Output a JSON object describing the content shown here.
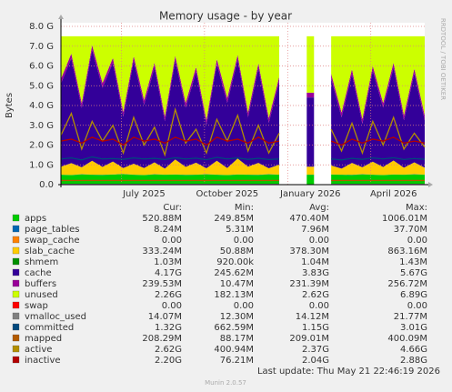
{
  "chart_data": {
    "type": "area",
    "title": "Memory usage - by year",
    "ylabel": "Bytes",
    "side_text": "RRDTOOL / TOBI OETIKER",
    "categories": [
      null,
      null,
      null,
      null,
      null,
      null,
      null,
      null,
      "July 2025",
      null,
      null,
      null,
      null,
      null,
      null,
      null,
      "October 2025",
      null,
      null,
      null,
      null,
      null,
      null,
      null,
      "January 2026",
      null,
      null,
      null,
      null,
      null,
      null,
      null,
      "April 2026",
      null,
      null,
      null
    ],
    "ylim": [
      0,
      8.0
    ],
    "yticks": [
      {
        "value": 0,
        "label": "0.0"
      },
      {
        "value": 1,
        "label": "1.0 G"
      },
      {
        "value": 2,
        "label": "2.0 G"
      },
      {
        "value": 3,
        "label": "3.0 G"
      },
      {
        "value": 4,
        "label": "4.0 G"
      },
      {
        "value": 5,
        "label": "5.0 G"
      },
      {
        "value": 6,
        "label": "6.0 G"
      },
      {
        "value": 7,
        "label": "7.0 G"
      },
      {
        "value": 8,
        "label": "8.0 G"
      }
    ],
    "grid": true,
    "stats_labels": [
      "Cur:",
      "Min:",
      "Avg:",
      "Max:"
    ],
    "series": [
      {
        "name": "apps",
        "color": "#00cc00",
        "style": "stack",
        "stats": [
          "520.88M",
          "249.85M",
          "470.40M",
          "1006.01M"
        ],
        "values": [
          0.5,
          0.48,
          0.52,
          0.5,
          0.49,
          0.51,
          0.53,
          0.5,
          0.48,
          0.52,
          0.5,
          0.51,
          0.49,
          0.5,
          0.52,
          0.5,
          0.48,
          0.51,
          0.5,
          0.49,
          0.52,
          0.5,
          null,
          null,
          0.5,
          null,
          0.51,
          0.5,
          0.49,
          0.52,
          0.5,
          0.48,
          0.51,
          0.5,
          0.52,
          0.5
        ]
      },
      {
        "name": "page_tables",
        "color": "#0066b3",
        "style": "stack",
        "stats": [
          "8.24M",
          "5.31M",
          "7.96M",
          "37.70M"
        ],
        "values": [
          0.008,
          0.008,
          0.008,
          0.008,
          0.008,
          0.008,
          0.008,
          0.008,
          0.008,
          0.008,
          0.008,
          0.008,
          0.008,
          0.008,
          0.008,
          0.008,
          0.008,
          0.008,
          0.008,
          0.008,
          0.008,
          0.008,
          null,
          null,
          0.008,
          null,
          0.008,
          0.008,
          0.008,
          0.008,
          0.008,
          0.008,
          0.008,
          0.008,
          0.008,
          0.008
        ]
      },
      {
        "name": "swap_cache",
        "color": "#ff8000",
        "style": "stack",
        "stats": [
          "0.00",
          "0.00",
          "0.00",
          "0.00"
        ],
        "values": [
          0,
          0,
          0,
          0,
          0,
          0,
          0,
          0,
          0,
          0,
          0,
          0,
          0,
          0,
          0,
          0,
          0,
          0,
          0,
          0,
          0,
          0,
          null,
          null,
          0,
          null,
          0,
          0,
          0,
          0,
          0,
          0,
          0,
          0,
          0,
          0
        ]
      },
      {
        "name": "slab_cache",
        "color": "#ffcc00",
        "style": "stack",
        "stats": [
          "333.24M",
          "50.88M",
          "378.30M",
          "863.16M"
        ],
        "values": [
          0.4,
          0.6,
          0.35,
          0.7,
          0.4,
          0.65,
          0.3,
          0.55,
          0.35,
          0.6,
          0.3,
          0.75,
          0.4,
          0.6,
          0.3,
          0.7,
          0.35,
          0.8,
          0.4,
          0.6,
          0.3,
          0.5,
          null,
          null,
          0.4,
          null,
          0.45,
          0.3,
          0.6,
          0.35,
          0.65,
          0.4,
          0.7,
          0.35,
          0.6,
          0.35
        ]
      },
      {
        "name": "shmem",
        "color": "#008f00",
        "style": "stack",
        "stats": [
          "1.03M",
          "920.00k",
          "1.04M",
          "1.43M"
        ],
        "values": [
          0.001,
          0.001,
          0.001,
          0.001,
          0.001,
          0.001,
          0.001,
          0.001,
          0.001,
          0.001,
          0.001,
          0.001,
          0.001,
          0.001,
          0.001,
          0.001,
          0.001,
          0.001,
          0.001,
          0.001,
          0.001,
          0.001,
          null,
          null,
          0.001,
          null,
          0.001,
          0.001,
          0.001,
          0.001,
          0.001,
          0.001,
          0.001,
          0.001,
          0.001,
          0.001
        ]
      },
      {
        "name": "cache",
        "color": "#330099",
        "style": "stack",
        "stats": [
          "4.17G",
          "245.62M",
          "3.83G",
          "5.67G"
        ],
        "values": [
          4.2,
          5.3,
          3.0,
          5.6,
          4.0,
          5.0,
          2.6,
          5.2,
          3.2,
          4.8,
          2.4,
          5.0,
          3.0,
          4.6,
          2.2,
          4.9,
          3.3,
          5.0,
          2.5,
          4.8,
          2.3,
          4.2,
          null,
          null,
          3.5,
          null,
          4.4,
          2.6,
          4.5,
          2.2,
          4.6,
          3.0,
          4.7,
          2.4,
          4.5,
          2.4
        ]
      },
      {
        "name": "buffers",
        "color": "#990099",
        "style": "stack",
        "stats": [
          "239.53M",
          "10.47M",
          "231.39M",
          "256.72M"
        ],
        "values": [
          0.24,
          0.24,
          0.24,
          0.24,
          0.24,
          0.24,
          0.24,
          0.24,
          0.24,
          0.24,
          0.24,
          0.24,
          0.24,
          0.24,
          0.24,
          0.24,
          0.24,
          0.24,
          0.24,
          0.24,
          0.24,
          0.24,
          null,
          null,
          0.24,
          null,
          0.24,
          0.24,
          0.24,
          0.24,
          0.24,
          0.24,
          0.24,
          0.24,
          0.24,
          0.24
        ]
      },
      {
        "name": "unused",
        "color": "#ccff00",
        "style": "stack",
        "stats": [
          "2.26G",
          "182.13M",
          "2.62G",
          "6.89G"
        ],
        "values": [
          2.15,
          0.87,
          3.38,
          0.45,
          2.36,
          1.09,
          3.82,
          1.0,
          3.22,
          1.33,
          4.05,
          0.99,
          3.36,
          1.55,
          4.23,
          1.15,
          3.12,
          0.94,
          3.85,
          1.36,
          4.13,
          2.05,
          null,
          null,
          2.85,
          null,
          1.89,
          3.85,
          1.66,
          4.18,
          1.5,
          3.37,
          1.34,
          4.0,
          1.63,
          4.0
        ]
      },
      {
        "name": "swap",
        "color": "#ff0000",
        "style": "stack",
        "stats": [
          "0.00",
          "0.00",
          "0.00",
          "0.00"
        ],
        "values": [
          0,
          0,
          0,
          0,
          0,
          0,
          0,
          0,
          0,
          0,
          0,
          0,
          0,
          0,
          0,
          0,
          0,
          0,
          0,
          0,
          0,
          0,
          null,
          null,
          0,
          null,
          0,
          0,
          0,
          0,
          0,
          0,
          0,
          0,
          0,
          0
        ]
      },
      {
        "name": "vmalloc_used",
        "color": "#808080",
        "style": "line",
        "stats": [
          "14.07M",
          "12.30M",
          "14.12M",
          "21.77M"
        ],
        "values": [
          0.014,
          0.014,
          0.014,
          0.014,
          0.014,
          0.014,
          0.014,
          0.014,
          0.014,
          0.014,
          0.014,
          0.014,
          0.014,
          0.014,
          0.014,
          0.014,
          0.014,
          0.014,
          0.014,
          0.014,
          0.014,
          0.014,
          null,
          null,
          0.014,
          null,
          0.014,
          0.014,
          0.014,
          0.014,
          0.014,
          0.014,
          0.014,
          0.014,
          0.014,
          0.014
        ]
      },
      {
        "name": "committed",
        "color": "#00487d",
        "style": "line",
        "stats": [
          "1.32G",
          "662.59M",
          "1.15G",
          "3.01G"
        ],
        "values": [
          1.3,
          1.35,
          1.25,
          1.4,
          1.3,
          1.32,
          1.28,
          1.35,
          1.3,
          1.33,
          1.27,
          1.36,
          1.3,
          1.34,
          1.26,
          1.38,
          1.3,
          1.35,
          1.28,
          1.33,
          1.27,
          1.3,
          null,
          null,
          1.2,
          null,
          1.3,
          1.25,
          1.33,
          1.28,
          1.35,
          1.3,
          1.36,
          1.27,
          1.32,
          1.28
        ]
      },
      {
        "name": "mapped",
        "color": "#b35a00",
        "style": "line",
        "stats": [
          "208.29M",
          "88.17M",
          "209.01M",
          "400.09M"
        ],
        "values": [
          0.21,
          0.21,
          0.21,
          0.21,
          0.21,
          0.21,
          0.21,
          0.21,
          0.21,
          0.21,
          0.21,
          0.21,
          0.21,
          0.21,
          0.21,
          0.21,
          0.21,
          0.21,
          0.21,
          0.21,
          0.21,
          0.21,
          null,
          null,
          0.21,
          null,
          0.21,
          0.21,
          0.21,
          0.21,
          0.21,
          0.21,
          0.21,
          0.21,
          0.21,
          0.21
        ]
      },
      {
        "name": "active",
        "color": "#b38f00",
        "style": "line",
        "stats": [
          "2.62G",
          "400.94M",
          "2.37G",
          "4.66G"
        ],
        "values": [
          2.5,
          3.6,
          1.8,
          3.2,
          2.2,
          3.0,
          1.6,
          3.4,
          2.0,
          2.9,
          1.5,
          3.8,
          2.1,
          2.8,
          1.6,
          3.3,
          2.2,
          3.5,
          1.7,
          3.0,
          1.6,
          2.6,
          null,
          null,
          2.0,
          null,
          2.8,
          1.7,
          3.1,
          1.6,
          3.2,
          2.0,
          3.4,
          1.8,
          2.6,
          1.9
        ]
      },
      {
        "name": "inactive",
        "color": "#b30000",
        "style": "line",
        "stats": [
          "2.20G",
          "76.21M",
          "2.04G",
          "2.88G"
        ],
        "values": [
          2.2,
          2.3,
          2.1,
          2.4,
          2.2,
          2.3,
          2.0,
          2.4,
          2.2,
          2.3,
          2.1,
          2.4,
          2.2,
          2.3,
          2.0,
          2.4,
          2.2,
          2.3,
          2.1,
          2.4,
          2.1,
          2.2,
          null,
          null,
          1.9,
          null,
          2.2,
          2.0,
          2.3,
          2.1,
          2.3,
          2.2,
          2.4,
          2.1,
          2.2,
          2.1
        ]
      }
    ],
    "last_update": "Last update: Thu May 21 22:46:19 2026",
    "footer": "Munin 2.0.57"
  }
}
